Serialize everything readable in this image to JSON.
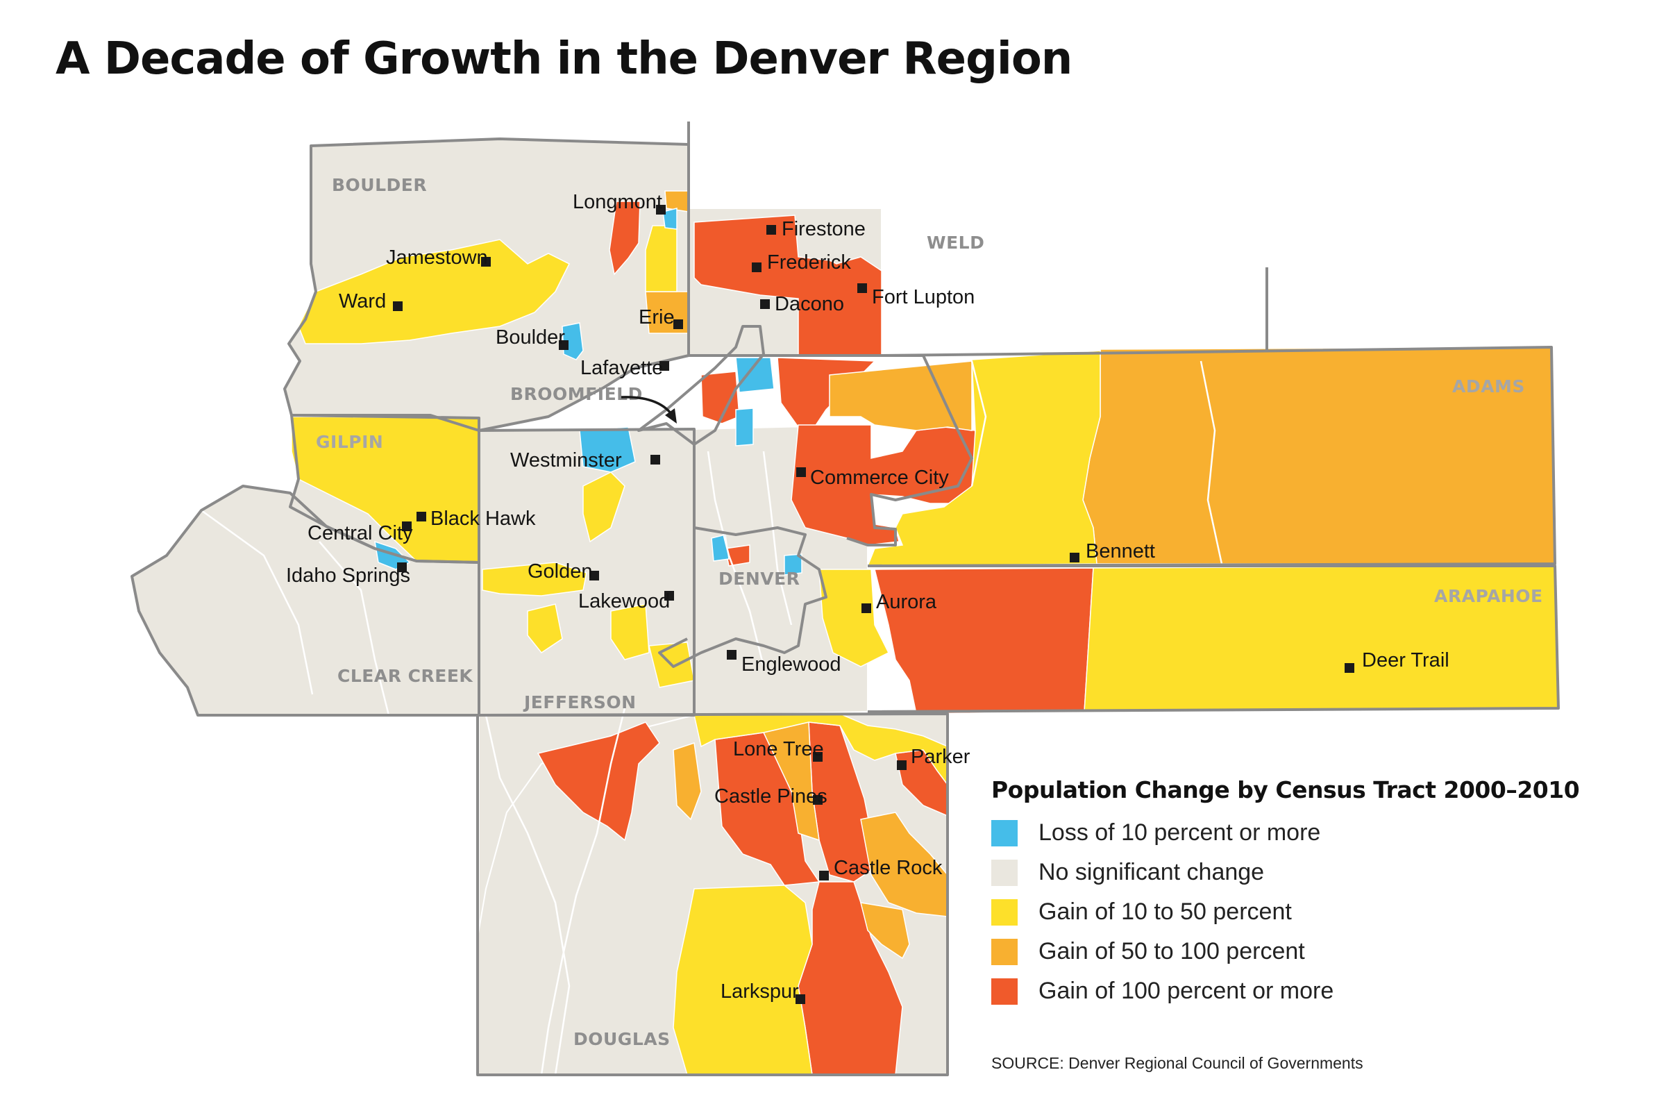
{
  "title": "A Decade of Growth in the Denver Region",
  "colors": {
    "loss": "#45bde9",
    "none": "#eae7df",
    "gain_low": "#fde02a",
    "gain_mid": "#f8b030",
    "gain_high": "#f05a2b",
    "county_border": "#8a8a8a"
  },
  "counties": {
    "boulder": "BOULDER",
    "weld": "WELD",
    "broomfield": "BROOMFIELD",
    "gilpin": "GILPIN",
    "adams": "ADAMS",
    "clear_creek": "CLEAR CREEK",
    "jefferson": "JEFFERSON",
    "denver": "DENVER",
    "arapahoe": "ARAPAHOE",
    "douglas": "DOUGLAS"
  },
  "cities": {
    "longmont": "Longmont",
    "firestone": "Firestone",
    "jamestown": "Jamestown",
    "frederick": "Frederick",
    "fort_lupton": "Fort Lupton",
    "dacono": "Dacono",
    "ward": "Ward",
    "erie": "Erie",
    "boulder": "Boulder",
    "lafayette": "Lafayette",
    "westminster": "Westminster",
    "commerce_city": "Commerce City",
    "black_hawk": "Black Hawk",
    "central_city": "Central City",
    "bennett": "Bennett",
    "golden": "Golden",
    "idaho_springs": "Idaho Springs",
    "lakewood": "Lakewood",
    "aurora": "Aurora",
    "englewood": "Englewood",
    "deer_trail": "Deer Trail",
    "lone_tree": "Lone Tree",
    "parker": "Parker",
    "castle_pines": "Castle Pines",
    "castle_rock": "Castle Rock",
    "larkspur": "Larkspur"
  },
  "legend": {
    "title": "Population Change by Census Tract 2000–2010",
    "items": [
      {
        "label": "Loss of 10 percent or more",
        "color": "#45bde9"
      },
      {
        "label": "No significant change",
        "color": "#eae7df"
      },
      {
        "label": "Gain of 10 to 50 percent",
        "color": "#fde02a"
      },
      {
        "label": "Gain of 50 to 100 percent",
        "color": "#f8b030"
      },
      {
        "label": "Gain of 100 percent or more",
        "color": "#f05a2b"
      }
    ]
  },
  "source": "SOURCE: Denver Regional Council of Governments"
}
